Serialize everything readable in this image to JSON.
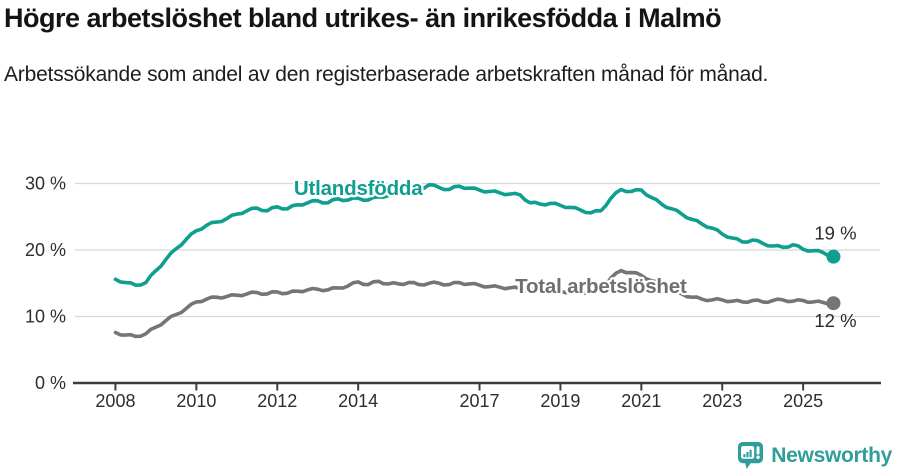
{
  "title": "Högre arbetslöshet bland utrikes- än inrikesfödda i Malmö",
  "subtitle": "Arbetssökande som andel av den registerbaserade arbetskraften månad för månad.",
  "footer": {
    "brand": "Newsworthy",
    "logo_color": "#2f9e9b"
  },
  "colors": {
    "foreign_born_line": "#0f9f90",
    "total_line": "#757578",
    "total_label": "#6f6f73",
    "axis": "#3d3d3d",
    "grid": "#d8d8d8",
    "tick_text": "#2e2e2e",
    "value_text": "#2b2b2b"
  },
  "chart_data": {
    "type": "line",
    "title": "Högre arbetslöshet bland utrikes- än inrikesfödda i Malmö",
    "subtitle": "Arbetssökande som andel av den registerbaserade arbetskraften månad för månad.",
    "x_unit": "year (monthly series, plotted quarterly estimates)",
    "x_start": 2008.0,
    "x_step": 0.25,
    "x_end": 2025.75,
    "ylim": [
      0,
      32
    ],
    "yticks": [
      0,
      10,
      20,
      30
    ],
    "ytick_labels": [
      "0 %",
      "10 %",
      "20 %",
      "30 %"
    ],
    "xticks": [
      2008,
      2010,
      2012,
      2014,
      2017,
      2019,
      2021,
      2023,
      2025
    ],
    "xtick_labels": [
      "2008",
      "2010",
      "2012",
      "2014",
      "2017",
      "2019",
      "2021",
      "2023",
      "2025"
    ],
    "grid": "horizontal",
    "legend_position": "inline-labels",
    "series": [
      {
        "name": "Utlandsfödda",
        "color": "#0f9f90",
        "label_color": "#0f9f90",
        "label_pos": {
          "x": 2014.0,
          "y": 29.3
        },
        "end_label": "19 %",
        "end_value": 19,
        "values": [
          15.6,
          15.1,
          14.7,
          15.1,
          16.9,
          18.6,
          20.2,
          21.6,
          22.9,
          23.7,
          24.2,
          24.7,
          25.4,
          25.9,
          26.3,
          25.9,
          26.5,
          26.2,
          26.8,
          27.1,
          27.4,
          27.1,
          27.7,
          27.5,
          27.8,
          27.5,
          28.0,
          28.2,
          28.5,
          28.8,
          29.1,
          29.8,
          29.4,
          29.1,
          29.6,
          29.3,
          29.0,
          28.8,
          28.6,
          28.4,
          28.3,
          27.1,
          26.9,
          27.0,
          26.7,
          26.4,
          26.0,
          25.6,
          25.9,
          27.8,
          29.1,
          28.8,
          29.0,
          27.9,
          26.9,
          26.2,
          25.4,
          24.6,
          23.9,
          23.3,
          22.4,
          21.8,
          21.2,
          21.5,
          21.0,
          20.6,
          20.4,
          20.8,
          20.1,
          19.9,
          19.6,
          19.0
        ]
      },
      {
        "name": "Total arbetslöshet",
        "color": "#757578",
        "label_color": "#6f6f73",
        "label_pos": {
          "x": 2020.0,
          "y": 14.6
        },
        "end_label": "12 %",
        "end_value": 12,
        "values": [
          7.6,
          7.2,
          7.0,
          7.4,
          8.4,
          9.4,
          10.3,
          11.2,
          12.2,
          12.6,
          12.9,
          13.0,
          13.2,
          13.4,
          13.6,
          13.4,
          13.7,
          13.5,
          13.8,
          14.0,
          14.1,
          14.0,
          14.3,
          14.6,
          15.2,
          14.8,
          15.3,
          14.9,
          14.9,
          15.1,
          14.8,
          15.0,
          15.0,
          14.8,
          15.1,
          14.9,
          14.7,
          14.5,
          14.4,
          14.3,
          14.2,
          14.0,
          13.9,
          13.8,
          13.8,
          13.7,
          13.6,
          13.7,
          14.0,
          15.8,
          16.9,
          16.6,
          16.2,
          15.4,
          14.7,
          14.0,
          13.4,
          12.9,
          12.6,
          12.5,
          12.5,
          12.3,
          12.2,
          12.4,
          12.2,
          12.4,
          12.5,
          12.3,
          12.4,
          12.2,
          12.1,
          12.0
        ]
      }
    ]
  }
}
